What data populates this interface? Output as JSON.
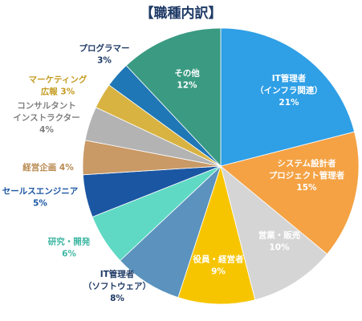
{
  "chart_data": {
    "type": "pie",
    "title": "【職種内訳】",
    "slices": [
      {
        "lines": [
          "IT管理者",
          "（インフラ関連）",
          "21%"
        ],
        "value": 21,
        "color": "#2f9fe6",
        "label_color": "#ffffff"
      },
      {
        "lines": [
          "システム設計者",
          "プロジェクト管理者",
          "15%"
        ],
        "value": 15,
        "color": "#f4a244",
        "label_color": "#ffffff"
      },
      {
        "lines": [
          "営業・販売",
          "10%"
        ],
        "value": 10,
        "color": "#d5d5d5",
        "label_color": "#ffffff"
      },
      {
        "lines": [
          "役員・経営者",
          "9%"
        ],
        "value": 9,
        "color": "#f7c500",
        "label_color": "#ffffff"
      },
      {
        "lines": [
          "IT管理者",
          "（ソフトウェア）",
          "8%"
        ],
        "value": 8,
        "color": "#5b93be",
        "label_color": "#1f3a66"
      },
      {
        "lines": [
          "研究・開発",
          "6%"
        ],
        "value": 6,
        "color": "#5fd9c4",
        "label_color": "#3fb7a3"
      },
      {
        "lines": [
          "セールスエンジニア",
          "5%"
        ],
        "value": 5,
        "color": "#1b56a3",
        "label_color": "#1b56a3"
      },
      {
        "lines": [
          "経営企画 4%"
        ],
        "value": 4,
        "color": "#c99966",
        "label_color": "#b98a50"
      },
      {
        "lines": [
          "コンサルタント",
          "インストラクター",
          "4%"
        ],
        "value": 4,
        "color": "#b3b3b3",
        "label_color": "#7f7f7f"
      },
      {
        "lines": [
          "マーケティング",
          "広報 3%"
        ],
        "value": 3,
        "color": "#d8b342",
        "label_color": "#c59b20"
      },
      {
        "lines": [
          "プログラマー",
          "3%"
        ],
        "value": 3,
        "color": "#1f77b6",
        "label_color": "#1f3a66"
      },
      {
        "lines": [
          "その他",
          "12%"
        ],
        "value": 12,
        "color": "#3a9a82",
        "label_color": "#ffffff"
      }
    ]
  }
}
